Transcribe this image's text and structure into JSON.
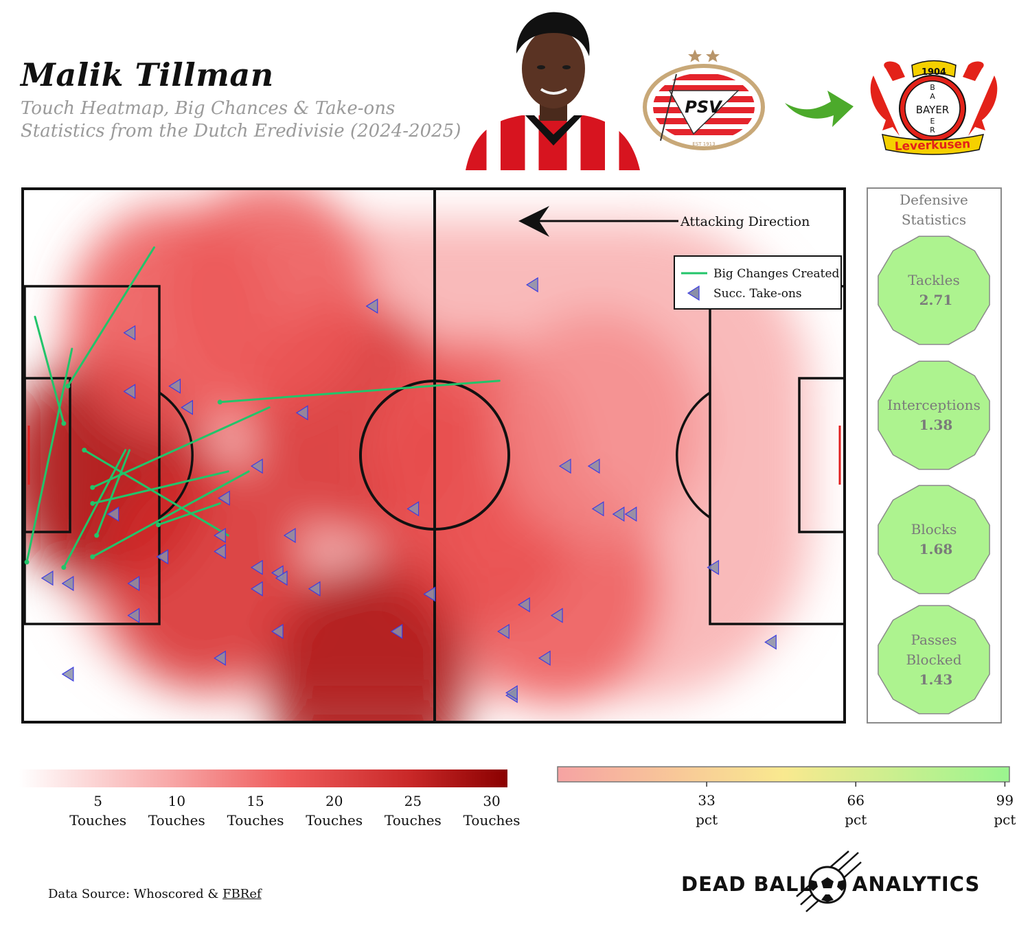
{
  "header": {
    "player_name": "Malik Tillman",
    "subtitle_line1": "Touch Heatmap, Big Chances & Take-ons",
    "subtitle_line2": "Statistics from the Dutch Eredivisie (2024-2025)"
  },
  "logos": {
    "from_club": "PSV",
    "from_club_est": "EST 1913",
    "to_club_top": "1904",
    "to_club_cross_h": "BAYER",
    "to_club_cross_v": [
      "B",
      "A",
      "Y",
      "E",
      "R"
    ],
    "to_club_banner": "Leverkusen",
    "arrow_color": "#4caa2b"
  },
  "chart_data": {
    "type": "scatter",
    "title": "Touch Heatmap, Big Chances & Take-ons",
    "attacking_direction_label": "Attacking Direction",
    "attacking_direction": "left",
    "legend": [
      {
        "label": "Big Changes Created",
        "color": "#22c46a",
        "marker": "line"
      },
      {
        "label": "Succ. Take-ons",
        "color": "#8a8fa8",
        "marker": "left-triangle"
      }
    ],
    "legend_position": "top-right",
    "pitch": {
      "x_range": [
        0,
        100
      ],
      "y_range": [
        0,
        100
      ],
      "x_note": "0 = attacking goal line (left)"
    },
    "heatmap_hotspots": [
      {
        "x": 10,
        "y": 47,
        "intensity": 30
      },
      {
        "x": 40,
        "y": 57,
        "intensity": 26
      },
      {
        "x": 42,
        "y": 8,
        "intensity": 30
      },
      {
        "x": 55,
        "y": 40,
        "intensity": 22
      },
      {
        "x": 22,
        "y": 28,
        "intensity": 22
      },
      {
        "x": 55,
        "y": 50,
        "intensity": 18
      },
      {
        "x": 65,
        "y": 25,
        "intensity": 14
      },
      {
        "x": 18,
        "y": 75,
        "intensity": 16
      },
      {
        "x": 70,
        "y": 55,
        "intensity": 10
      },
      {
        "x": 30,
        "y": 80,
        "intensity": 14
      }
    ],
    "big_chances": [
      {
        "x_start": 16,
        "y_start": 89,
        "x_end": 5.5,
        "y_end": 63
      },
      {
        "x_start": 6,
        "y_start": 70,
        "x_end": 0.5,
        "y_end": 30
      },
      {
        "x_start": 1.5,
        "y_start": 76,
        "x_end": 5,
        "y_end": 56
      },
      {
        "x_start": 58,
        "y_start": 64,
        "x_end": 24,
        "y_end": 60
      },
      {
        "x_start": 30,
        "y_start": 59,
        "x_end": 8.5,
        "y_end": 44
      },
      {
        "x_start": 25,
        "y_start": 47,
        "x_end": 8.5,
        "y_end": 41
      },
      {
        "x_start": 25,
        "y_start": 35,
        "x_end": 7.5,
        "y_end": 51
      },
      {
        "x_start": 27.5,
        "y_start": 47,
        "x_end": 8.5,
        "y_end": 31
      },
      {
        "x_start": 12.5,
        "y_start": 51,
        "x_end": 5,
        "y_end": 29
      },
      {
        "x_start": 13,
        "y_start": 51,
        "x_end": 9,
        "y_end": 35
      },
      {
        "x_start": 24,
        "y_start": 41,
        "x_end": 16.5,
        "y_end": 37
      }
    ],
    "take_ons": [
      {
        "x": 42.5,
        "y": 78
      },
      {
        "x": 62,
        "y": 82
      },
      {
        "x": 13,
        "y": 73
      },
      {
        "x": 18.5,
        "y": 63
      },
      {
        "x": 13,
        "y": 62
      },
      {
        "x": 20,
        "y": 59
      },
      {
        "x": 34,
        "y": 58
      },
      {
        "x": 28.5,
        "y": 48
      },
      {
        "x": 24.5,
        "y": 42
      },
      {
        "x": 47.5,
        "y": 40
      },
      {
        "x": 66,
        "y": 48
      },
      {
        "x": 69.5,
        "y": 48
      },
      {
        "x": 70,
        "y": 40
      },
      {
        "x": 72.5,
        "y": 39
      },
      {
        "x": 74,
        "y": 39
      },
      {
        "x": 11,
        "y": 39
      },
      {
        "x": 24,
        "y": 35
      },
      {
        "x": 32.5,
        "y": 35
      },
      {
        "x": 24,
        "y": 32
      },
      {
        "x": 17,
        "y": 31
      },
      {
        "x": 28.5,
        "y": 29
      },
      {
        "x": 31,
        "y": 28
      },
      {
        "x": 31.5,
        "y": 27
      },
      {
        "x": 3,
        "y": 27
      },
      {
        "x": 5.5,
        "y": 26
      },
      {
        "x": 13.5,
        "y": 26
      },
      {
        "x": 28.5,
        "y": 25
      },
      {
        "x": 35.5,
        "y": 25
      },
      {
        "x": 49.5,
        "y": 24
      },
      {
        "x": 84,
        "y": 29
      },
      {
        "x": 13.5,
        "y": 20
      },
      {
        "x": 61,
        "y": 22
      },
      {
        "x": 65,
        "y": 20
      },
      {
        "x": 31,
        "y": 17
      },
      {
        "x": 45.5,
        "y": 17
      },
      {
        "x": 58.5,
        "y": 17
      },
      {
        "x": 24,
        "y": 12
      },
      {
        "x": 63.5,
        "y": 12
      },
      {
        "x": 91,
        "y": 15
      },
      {
        "x": 5.5,
        "y": 9
      },
      {
        "x": 59.5,
        "y": 5
      },
      {
        "x": 59.5,
        "y": 5.5
      }
    ],
    "defensive_title": "Defensive Statistics",
    "defensive_stats": [
      {
        "label": "Tackles",
        "value": "2.71",
        "pct": 90
      },
      {
        "label": "Interceptions",
        "value": "1.38",
        "pct": 90
      },
      {
        "label": "Blocks",
        "value": "1.68",
        "pct": 90
      },
      {
        "label": "Passes Blocked",
        "value": "1.43",
        "pct": 90
      }
    ],
    "touch_colorbar": {
      "unit": "Touches",
      "ticks": [
        5,
        10,
        15,
        20,
        25,
        30
      ],
      "range": [
        0,
        31
      ]
    },
    "pct_colorbar": {
      "unit": "pct",
      "ticks": [
        33,
        66,
        99
      ],
      "range": [
        0,
        100
      ],
      "colors": [
        "#f6a3a3",
        "#f9e98f",
        "#9af58f"
      ]
    }
  },
  "footer": {
    "source_prefix": "Data Source: Whoscored & ",
    "source_link": "FBRef",
    "brand_left": "DEAD BALL",
    "brand_right": "ANALYTICS"
  }
}
